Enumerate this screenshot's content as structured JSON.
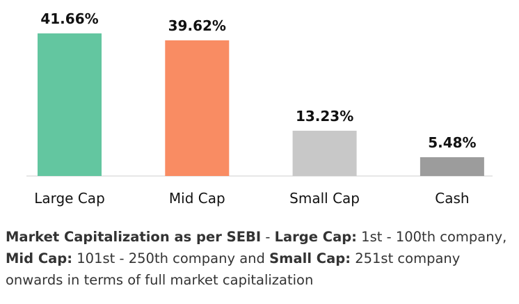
{
  "chart_data": {
    "type": "bar",
    "categories": [
      "Large Cap",
      "Mid Cap",
      "Small Cap",
      "Cash"
    ],
    "values": [
      41.66,
      39.62,
      13.23,
      5.48
    ],
    "value_labels": [
      "41.66%",
      "39.62%",
      "13.23%",
      "5.48%"
    ],
    "colors": [
      "#63c6a0",
      "#f98c63",
      "#c8c8c8",
      "#9c9c9c"
    ],
    "ylim": [
      0,
      41.66
    ],
    "grid": false,
    "legend": "none",
    "title": "",
    "xlabel": "",
    "ylabel": ""
  },
  "note": {
    "heading": "Market Capitalization as per SEBI",
    "sep1": " - ",
    "large_cap_label": "Large Cap:",
    "large_cap_text": " 1st - 100th company, ",
    "mid_cap_label": "Mid Cap:",
    "mid_cap_text": " 101st - 250th company and ",
    "small_cap_label": "Small Cap:",
    "small_cap_text": " 251st company onwards in terms of full market capitalization"
  }
}
